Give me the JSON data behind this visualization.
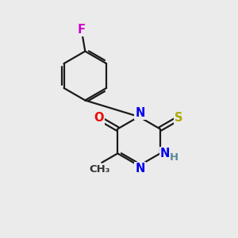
{
  "bg_color": "#ebebeb",
  "bond_color": "#1a1a1a",
  "line_width": 1.6,
  "atom_colors": {
    "F": "#cc00cc",
    "O": "#ee0000",
    "N": "#0000ee",
    "S": "#aaaa00",
    "H": "#558899"
  },
  "font_size": 10.5,
  "small_font_size": 9.5,
  "figsize": [
    3.0,
    3.0
  ],
  "dpi": 100
}
